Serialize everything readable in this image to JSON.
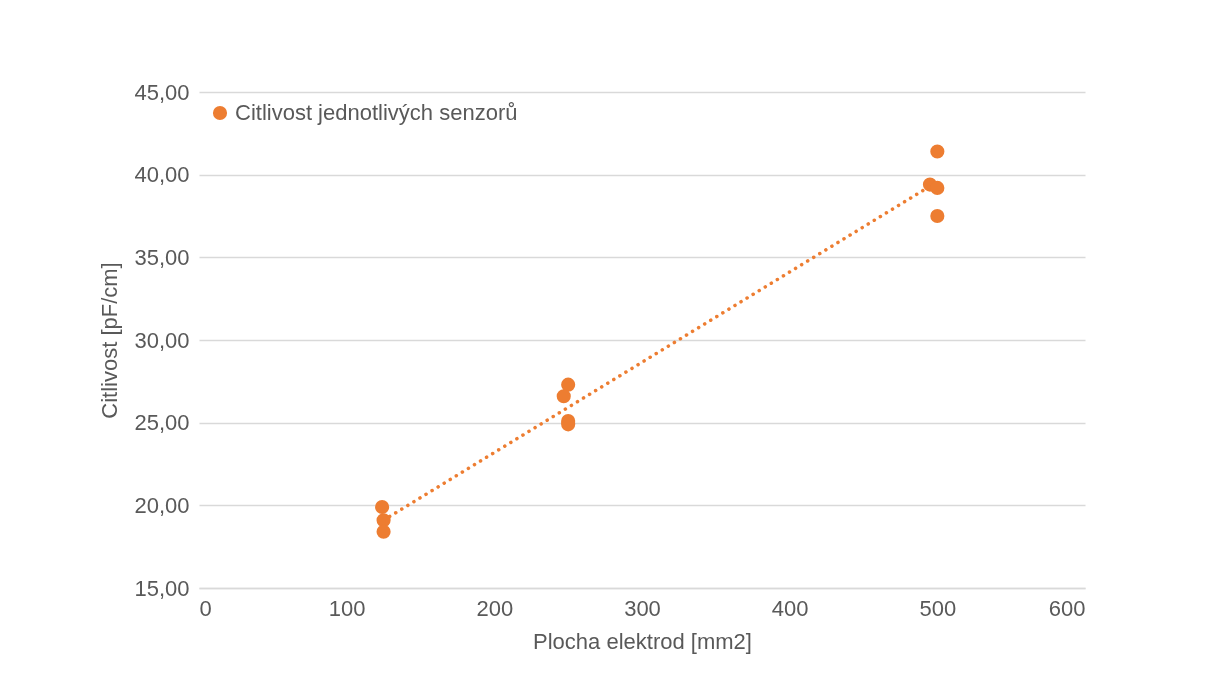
{
  "chart_data": {
    "type": "scatter",
    "xlabel": "Plocha elektrod [mm2]",
    "ylabel": "Citlivost [pF/cm]",
    "xlim": [
      0,
      600
    ],
    "xticks": [
      0,
      100,
      200,
      300,
      400,
      500,
      600
    ],
    "ylim": [
      15,
      45
    ],
    "yticks": [
      {
        "value": 15,
        "label": "15,00"
      },
      {
        "value": 20,
        "label": "20,00"
      },
      {
        "value": 25,
        "label": "25,00"
      },
      {
        "value": 30,
        "label": "30,00"
      },
      {
        "value": 35,
        "label": "35,00"
      },
      {
        "value": 40,
        "label": "40,00"
      },
      {
        "value": 45,
        "label": "45,00"
      }
    ],
    "grid": "y",
    "legend": "top left",
    "series": [
      {
        "name": "Citlivost jednotlivých senzorů",
        "color": "#ed7d31",
        "marker": "circle",
        "x": [
          124,
          125,
          125,
          250,
          247,
          250,
          250,
          500,
          495,
          500,
          500
        ],
        "values": [
          19.9,
          19.1,
          18.4,
          27.3,
          26.6,
          25.1,
          24.9,
          41.4,
          39.4,
          39.2,
          37.5
        ]
      },
      {
        "type": "line",
        "line_style": "dotted",
        "marker": "none",
        "color": "#ed7d31",
        "x": [
          125,
          495
        ],
        "values": [
          19.1,
          39.3
        ]
      }
    ]
  }
}
